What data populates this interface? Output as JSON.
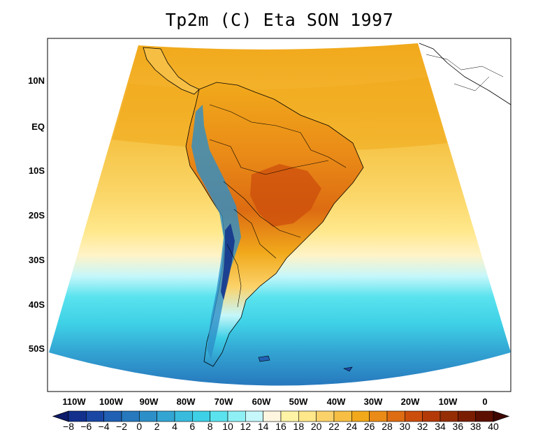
{
  "title": "Tp2m (C) Eta SON 1997",
  "latitude_labels": [
    "10N",
    "EQ",
    "10S",
    "20S",
    "30S",
    "40S",
    "50S"
  ],
  "longitude_labels": [
    "110W",
    "100W",
    "90W",
    "80W",
    "70W",
    "60W",
    "50W",
    "40W",
    "30W",
    "20W",
    "10W",
    "0"
  ],
  "colorbar": {
    "labels": [
      "-8",
      "-6",
      "-4",
      "-2",
      "0",
      "2",
      "4",
      "6",
      "8",
      "10",
      "12",
      "14",
      "16",
      "18",
      "20",
      "22",
      "24",
      "26",
      "28",
      "30",
      "32",
      "34",
      "36",
      "38",
      "40"
    ],
    "colors": [
      "#0c1b6b",
      "#12308c",
      "#1a47a4",
      "#2160b2",
      "#2778bd",
      "#2d8fc8",
      "#33a5d3",
      "#38bbdd",
      "#3ed0e6",
      "#5ae3ee",
      "#8ef0f5",
      "#c6f7fa",
      "#fff6e0",
      "#fff3a6",
      "#ffe78a",
      "#fbd26a",
      "#f6bf44",
      "#f1a91b",
      "#ea8b17",
      "#dd6c12",
      "#cc4e0c",
      "#b33a08",
      "#952d05",
      "#7a1e02",
      "#5c1000",
      "#3e0800"
    ]
  },
  "map": {
    "projection": "conic",
    "region": "South America",
    "field": "2m temperature"
  }
}
